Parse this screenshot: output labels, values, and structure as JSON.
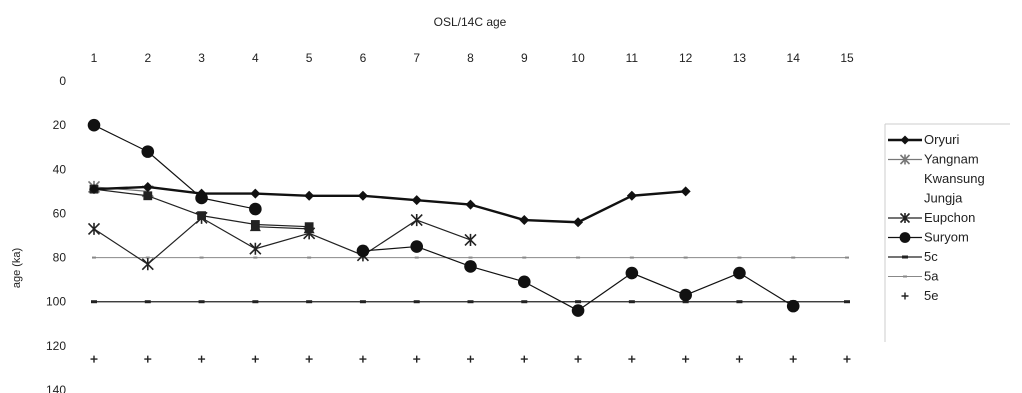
{
  "chart_data": {
    "type": "line",
    "title": "OSL/14C age",
    "ylabel": "age (ka)",
    "xlabel": "",
    "x": [
      1,
      2,
      3,
      4,
      5,
      6,
      7,
      8,
      9,
      10,
      11,
      12,
      13,
      14,
      15
    ],
    "x_tick_labels": [
      "1",
      "2",
      "3",
      "4",
      "5",
      "6",
      "7",
      "8",
      "9",
      "10",
      "11",
      "12",
      "13",
      "14",
      "15"
    ],
    "x_axis_position": "top",
    "xlim": [
      1,
      15
    ],
    "y_ticks": [
      0,
      20,
      40,
      60,
      80,
      100,
      120,
      140
    ],
    "y_tick_labels": [
      "0",
      "20",
      "40",
      "60",
      "80",
      "100",
      "120",
      "140"
    ],
    "ylim": [
      0,
      140
    ],
    "y_reversed": true,
    "grid": false,
    "legend_position": "right",
    "series": [
      {
        "name": "Oryuri",
        "color": "#111111",
        "marker": "diamond",
        "line_width": 2.4,
        "values": [
          49,
          48,
          51,
          51,
          52,
          52,
          54,
          56,
          63,
          64,
          52,
          50,
          null,
          null,
          null
        ]
      },
      {
        "name": "Yangnam",
        "color": "#777777",
        "marker": "asterisk",
        "line_width": 1.2,
        "values": [
          48,
          50,
          null,
          null,
          null,
          null,
          null,
          null,
          null,
          null,
          null,
          null,
          null,
          null,
          null
        ]
      },
      {
        "name": "Kwansung",
        "color": "#222222",
        "marker": "square",
        "line_width": 1.2,
        "values": [
          49,
          52,
          61,
          65,
          66,
          null,
          null,
          null,
          null,
          null,
          null,
          null,
          null,
          null,
          null
        ]
      },
      {
        "name": "Jungja",
        "color": "#222222",
        "marker": "triangle",
        "line_width": 1.2,
        "values": [
          null,
          null,
          null,
          66,
          67,
          null,
          null,
          null,
          null,
          null,
          null,
          null,
          null,
          null,
          null
        ]
      },
      {
        "name": "Eupchon",
        "color": "#222222",
        "marker": "asterisk",
        "line_width": 1.2,
        "values": [
          67,
          83,
          62,
          76,
          69,
          79,
          63,
          72,
          null,
          null,
          null,
          null,
          null,
          null,
          null
        ]
      },
      {
        "name": "Suryom",
        "color": "#111111",
        "marker": "circle",
        "line_width": 1.2,
        "values": [
          20,
          32,
          53,
          58,
          null,
          77,
          75,
          84,
          91,
          104,
          87,
          97,
          87,
          102,
          null
        ]
      },
      {
        "name": "5c",
        "color": "#222222",
        "marker": "dash",
        "line_width": 1.2,
        "values": [
          100,
          100,
          100,
          100,
          100,
          100,
          100,
          100,
          100,
          100,
          100,
          100,
          100,
          100,
          100
        ]
      },
      {
        "name": "5a",
        "color": "#888888",
        "marker": "tick",
        "line_width": 1.0,
        "values": [
          80,
          80,
          80,
          80,
          80,
          80,
          80,
          80,
          80,
          80,
          80,
          80,
          80,
          80,
          80
        ]
      },
      {
        "name": "5e",
        "color": "#222222",
        "marker": "plus",
        "line_width": 0,
        "values": [
          126,
          126,
          126,
          126,
          126,
          126,
          126,
          126,
          126,
          126,
          126,
          126,
          126,
          126,
          126
        ]
      }
    ]
  }
}
